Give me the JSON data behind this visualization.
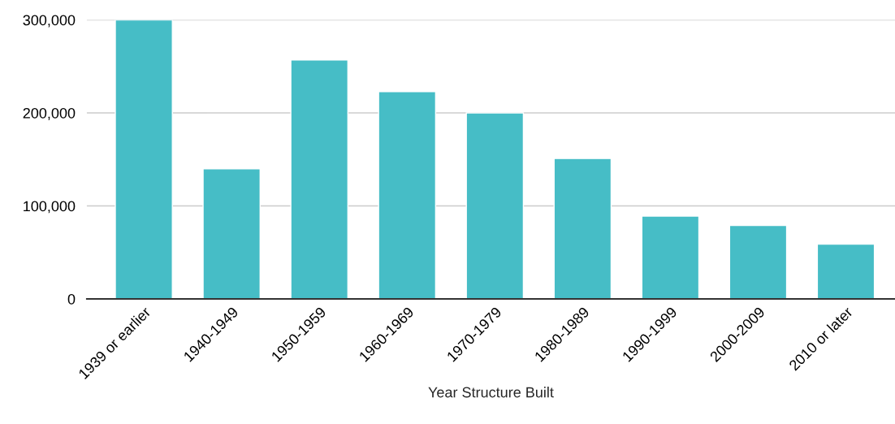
{
  "chart_data": {
    "type": "bar",
    "xlabel": "Year Structure Built",
    "categories": [
      "1939 or earlier",
      "1940-1949",
      "1950-1959",
      "1960-1969",
      "1970-1979",
      "1980-1989",
      "1990-1999",
      "2000-2009",
      "2010 or later"
    ],
    "values": [
      300000,
      140000,
      257000,
      223000,
      200000,
      151000,
      89000,
      79000,
      59000
    ],
    "color": "#46bdc6",
    "ylim": [
      0,
      300000
    ],
    "yticks": [
      {
        "value": 0,
        "label": "0"
      },
      {
        "value": 100000,
        "label": "100,000"
      },
      {
        "value": 200000,
        "label": "200,000"
      },
      {
        "value": 300000,
        "label": "300,000"
      }
    ],
    "grid": "y",
    "legend": false
  }
}
